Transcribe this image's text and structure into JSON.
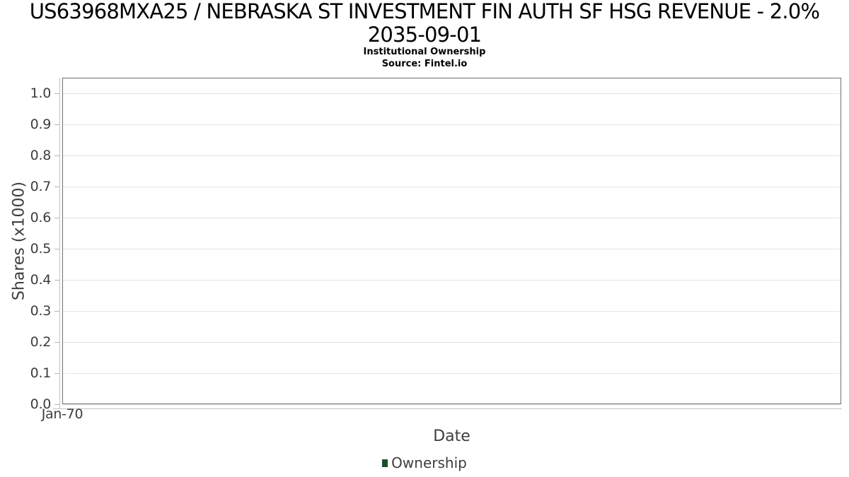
{
  "colors": {
    "background": "#ffffff",
    "title_text": "#000000",
    "label_text": "#3d3d3d",
    "frame": "#6f6f6f",
    "axis_line": "#c2c2c2",
    "tick": "#b5b5b5",
    "gridline": "#e5e5e5",
    "legend_marker": "#1d4e2a"
  },
  "chart_data": {
    "type": "line",
    "title_line1": "US63968MXA25 / NEBRASKA ST INVESTMENT FIN AUTH SF HSG REVENUE - 2.0%",
    "title_line2": "2035-09-01",
    "subtitle": "Institutional Ownership",
    "source": "Source: Fintel.io",
    "xlabel": "Date",
    "ylabel": "Shares (x1000)",
    "xticks": [
      "Jan-70"
    ],
    "yticks": [
      "0.0",
      "0.1",
      "0.2",
      "0.3",
      "0.4",
      "0.5",
      "0.6",
      "0.7",
      "0.8",
      "0.9",
      "1.0"
    ],
    "ylim": [
      0,
      1.05
    ],
    "grid": "horizontal",
    "legend_position": "bottom-center",
    "series": [
      {
        "name": "Ownership",
        "color": "#1d4e2a",
        "x": [],
        "values": []
      }
    ]
  }
}
